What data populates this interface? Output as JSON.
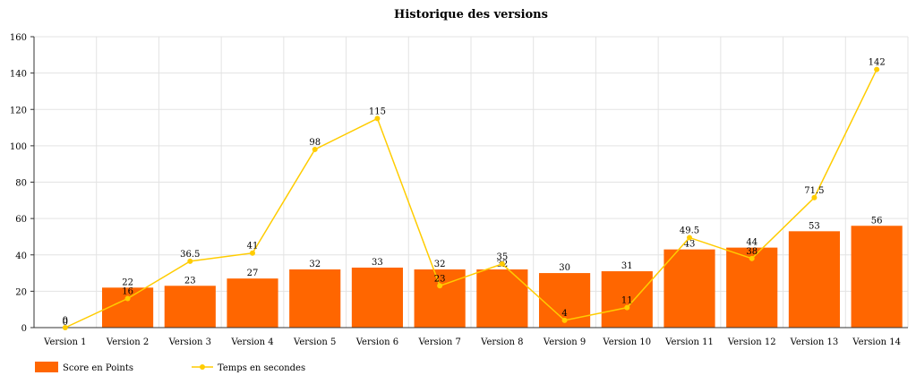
{
  "chart_data": {
    "type": "bar",
    "title": "Historique des versions",
    "xlabel": "",
    "ylabel": "",
    "ylim": [
      0,
      160
    ],
    "yticks": [
      0,
      20,
      40,
      60,
      80,
      100,
      120,
      140,
      160
    ],
    "grid": true,
    "legend_position": "bottom-left",
    "categories": [
      "Version 1",
      "Version 2",
      "Version 3",
      "Version 4",
      "Version 5",
      "Version 6",
      "Version 7",
      "Version 8",
      "Version 9",
      "Version 10",
      "Version 11",
      "Version 12",
      "Version 13",
      "Version 14"
    ],
    "series": [
      {
        "name": "Score en Points",
        "type": "bar",
        "color": "#ff6600",
        "values": [
          0,
          22,
          23,
          27,
          32,
          33,
          32,
          32,
          30,
          31,
          43,
          44,
          53,
          56
        ],
        "labels": [
          "0",
          "22",
          "23",
          "27",
          "32",
          "33",
          "32",
          "32",
          "30",
          "31",
          "43",
          "44",
          "53",
          "56"
        ]
      },
      {
        "name": "Temps en secondes",
        "type": "line",
        "color": "#ffcc00",
        "values": [
          0,
          16,
          36.5,
          41,
          98,
          115,
          23,
          35,
          4,
          11,
          49.5,
          38,
          71.5,
          142
        ],
        "labels": [
          "0",
          "16",
          "36.5",
          "41",
          "98",
          "115",
          "23",
          "35",
          "4",
          "11",
          "49.5",
          "38",
          "71.5",
          "142"
        ]
      }
    ]
  }
}
